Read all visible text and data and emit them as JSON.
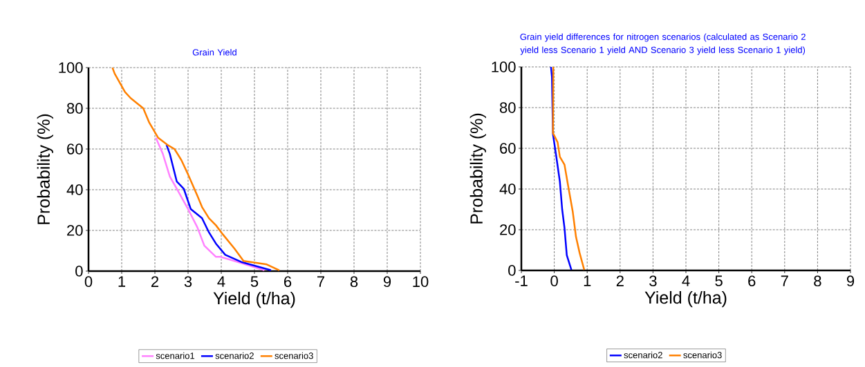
{
  "chart_data": [
    {
      "type": "line",
      "title": "Grain Yield",
      "xlabel": "Yield (t/ha)",
      "ylabel": "Probability (%)",
      "xlim": [
        0,
        10
      ],
      "xticks": [
        0,
        1,
        2,
        3,
        4,
        5,
        6,
        7,
        8,
        9,
        10
      ],
      "ylim": [
        0,
        100
      ],
      "yticks": [
        0,
        20,
        40,
        60,
        80,
        100
      ],
      "grid": true,
      "legend": "bottom",
      "marker": "none",
      "line_style": "solid",
      "series": [
        {
          "name": "scenario1",
          "color": "#ff80ff",
          "x": [
            2.03,
            2.24,
            2.45,
            2.66,
            3.0,
            3.28,
            3.49,
            3.84,
            3.98,
            4.6,
            5.3
          ],
          "values": [
            65.5,
            57.6,
            46.5,
            40.5,
            30.5,
            21.5,
            12.5,
            7,
            7,
            4,
            0.4
          ]
        },
        {
          "name": "scenario2",
          "color": "#0000ff",
          "x": [
            2.35,
            2.45,
            2.66,
            2.87,
            3.08,
            3.42,
            3.63,
            3.84,
            4.12,
            4.6,
            5.5
          ],
          "values": [
            62,
            57.6,
            44,
            40.5,
            30.5,
            26,
            19,
            13.5,
            8,
            4.5,
            0.4
          ]
        },
        {
          "name": "scenario3",
          "color": "#ff8000",
          "x": [
            0.72,
            0.79,
            1.1,
            1.27,
            1.65,
            1.83,
            2.1,
            2.38,
            2.59,
            2.8,
            3.0,
            3.28,
            3.42,
            3.63,
            3.84,
            4.05,
            4.4,
            4.67,
            5.37,
            5.75
          ],
          "values": [
            100,
            97,
            88,
            85,
            80,
            73,
            65.5,
            62,
            60,
            54.5,
            47.5,
            37,
            31.5,
            26,
            22.5,
            18,
            11,
            5,
            3.3,
            0.4
          ]
        }
      ]
    },
    {
      "type": "line",
      "title": "Grain yield differences for nitrogen scenarios (calculated as Scenario 2 yield less Scenario 1 yield AND Scenario 3 yield less Scenario 1 yield)",
      "xlabel": "Yield (t/ha)",
      "ylabel": "Probability (%)",
      "xlim": [
        -1,
        9
      ],
      "xticks": [
        -1,
        0,
        1,
        2,
        3,
        4,
        5,
        6,
        7,
        8,
        9
      ],
      "ylim": [
        0,
        100
      ],
      "yticks": [
        0,
        20,
        40,
        60,
        80,
        100
      ],
      "grid": true,
      "legend": "bottom",
      "marker": "none",
      "line_style": "solid",
      "series": [
        {
          "name": "scenario2",
          "color": "#0000ff",
          "x": [
            -0.1,
            -0.07,
            -0.04,
            0.07,
            0.17,
            0.24,
            0.31,
            0.38,
            0.52
          ],
          "values": [
            100,
            95,
            67,
            55,
            43.6,
            30,
            21,
            7.5,
            0.3
          ]
        },
        {
          "name": "scenario3",
          "color": "#ff8000",
          "x": [
            -0.03,
            -0.04,
            0.1,
            0.17,
            0.31,
            0.42,
            0.56,
            0.66,
            0.77,
            0.91
          ],
          "values": [
            100,
            67.5,
            63,
            55.8,
            52,
            41.7,
            29,
            16.5,
            8.6,
            0.3
          ]
        }
      ]
    }
  ]
}
